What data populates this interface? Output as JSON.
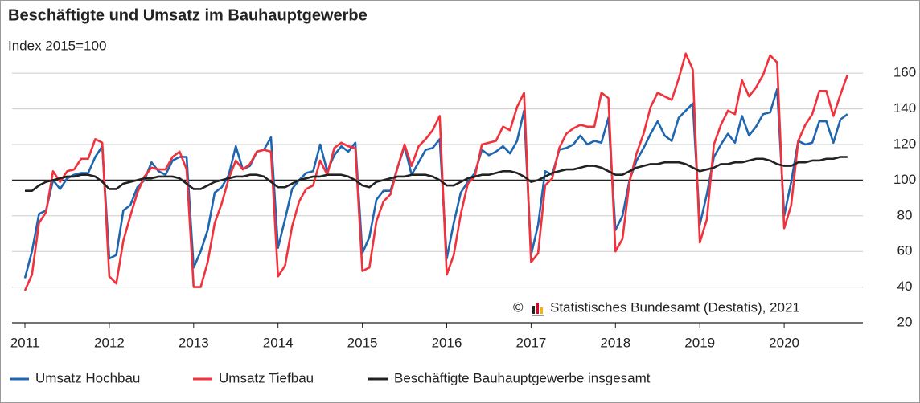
{
  "chart_data": {
    "type": "line",
    "title": "Beschäftigte und Umsatz im Bauhauptgewerbe",
    "subtitle": "Index 2015=100",
    "copyright_symbol": "©",
    "source": "Statistisches Bundesamt (Destatis), 2021",
    "categories": [
      "2011",
      null,
      null,
      null,
      null,
      null,
      null,
      null,
      null,
      null,
      null,
      null,
      "2012",
      null,
      null,
      null,
      null,
      null,
      null,
      null,
      null,
      null,
      null,
      null,
      "2013",
      null,
      null,
      null,
      null,
      null,
      null,
      null,
      null,
      null,
      null,
      null,
      "2014",
      null,
      null,
      null,
      null,
      null,
      null,
      null,
      null,
      null,
      null,
      null,
      "2015",
      null,
      null,
      null,
      null,
      null,
      null,
      null,
      null,
      null,
      null,
      null,
      "2016",
      null,
      null,
      null,
      null,
      null,
      null,
      null,
      null,
      null,
      null,
      null,
      "2017",
      null,
      null,
      null,
      null,
      null,
      null,
      null,
      null,
      null,
      null,
      null,
      "2018",
      null,
      null,
      null,
      null,
      null,
      null,
      null,
      null,
      null,
      null,
      null,
      "2019",
      null,
      null,
      null,
      null,
      null,
      null,
      null,
      null,
      null,
      null,
      null,
      "2020",
      null,
      null,
      null,
      null,
      null,
      null,
      null,
      null,
      null
    ],
    "series": [
      {
        "name": "Umsatz Hochbau",
        "color": "#1f66b0",
        "values": [
          45,
          60,
          81,
          83,
          100,
          95,
          101,
          103,
          104,
          104,
          113,
          119,
          56,
          58,
          83,
          86,
          96,
          100,
          110,
          105,
          103,
          111,
          113,
          113,
          51,
          60,
          72,
          93,
          96,
          103,
          119,
          106,
          108,
          116,
          117,
          124,
          62,
          78,
          95,
          100,
          104,
          105,
          120,
          105,
          114,
          119,
          116,
          121,
          59,
          68,
          89,
          94,
          94,
          107,
          119,
          103,
          110,
          117,
          118,
          123,
          56,
          76,
          93,
          99,
          104,
          117,
          114,
          116,
          119,
          115,
          122,
          139,
          58,
          75,
          105,
          103,
          117,
          118,
          120,
          125,
          120,
          122,
          121,
          135,
          72,
          80,
          100,
          111,
          118,
          126,
          133,
          125,
          122,
          135,
          139,
          143,
          75,
          92,
          113,
          120,
          126,
          121,
          136,
          125,
          130,
          137,
          138,
          151,
          80,
          99,
          122,
          120,
          121,
          133,
          133,
          121,
          134,
          137
        ]
      },
      {
        "name": "Umsatz Tiefbau",
        "color": "#f0323c",
        "values": [
          38,
          47,
          76,
          82,
          105,
          99,
          105,
          106,
          112,
          112,
          123,
          121,
          46,
          42,
          66,
          80,
          93,
          102,
          107,
          106,
          106,
          113,
          116,
          106,
          40,
          40,
          54,
          76,
          87,
          101,
          111,
          106,
          109,
          116,
          117,
          116,
          46,
          52,
          74,
          88,
          95,
          97,
          111,
          103,
          118,
          121,
          119,
          118,
          49,
          51,
          77,
          88,
          92,
          107,
          120,
          108,
          119,
          123,
          128,
          136,
          47,
          58,
          81,
          98,
          102,
          120,
          121,
          122,
          130,
          128,
          141,
          149,
          54,
          59,
          97,
          101,
          118,
          126,
          129,
          131,
          130,
          130,
          149,
          146,
          60,
          67,
          99,
          115,
          126,
          141,
          149,
          147,
          145,
          157,
          171,
          162,
          65,
          78,
          120,
          131,
          139,
          137,
          156,
          147,
          152,
          159,
          170,
          166,
          73,
          86,
          122,
          131,
          137,
          150,
          150,
          136,
          148,
          159
        ]
      },
      {
        "name": "Beschäftigte Bauhauptgewerbe insgesamt",
        "color": "#222222",
        "values": [
          94,
          94,
          97,
          99,
          100,
          101,
          102,
          102,
          103,
          103,
          102,
          99,
          95,
          95,
          98,
          99,
          100,
          101,
          101,
          102,
          102,
          102,
          101,
          98,
          95,
          95,
          97,
          99,
          100,
          101,
          102,
          102,
          103,
          103,
          102,
          99,
          96,
          96,
          98,
          100,
          101,
          102,
          102,
          103,
          103,
          103,
          102,
          100,
          97,
          96,
          99,
          100,
          101,
          102,
          102,
          103,
          103,
          103,
          102,
          100,
          97,
          97,
          99,
          101,
          102,
          103,
          103,
          104,
          105,
          105,
          104,
          102,
          99,
          100,
          102,
          104,
          105,
          106,
          106,
          107,
          108,
          108,
          107,
          105,
          103,
          103,
          105,
          107,
          108,
          109,
          109,
          110,
          110,
          110,
          109,
          107,
          105,
          106,
          107,
          109,
          109,
          110,
          110,
          111,
          112,
          112,
          111,
          109,
          108,
          108,
          110,
          110,
          111,
          111,
          112,
          112,
          113,
          113
        ]
      }
    ],
    "ylim": [
      20,
      168
    ],
    "yticks": [
      20,
      40,
      60,
      80,
      100,
      120,
      140,
      160
    ],
    "baseline": 100,
    "grid": true,
    "legend": "bottom"
  }
}
